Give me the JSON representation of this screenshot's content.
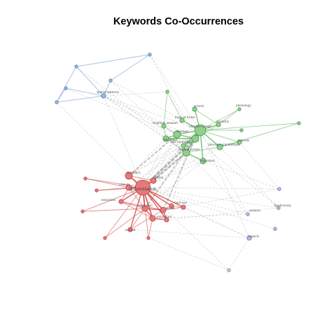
{
  "title": "Keywords Co-Occurrences",
  "colors": {
    "red": "#d9534f",
    "green": "#5cb85c",
    "blue": "#5b9bd5",
    "purple": "#b39ddb",
    "grey": "#999999"
  },
  "clusters": {
    "red": {
      "fill": "#e8787a",
      "stroke": "#b23b3d",
      "edge": "#d64545"
    },
    "green": {
      "fill": "#8fd18a",
      "stroke": "#3d8b3d",
      "edge": "#62b562"
    },
    "blue": {
      "fill": "#9fb8e0",
      "stroke": "#4a6fb0",
      "edge": "#6a98d0"
    },
    "purple": {
      "fill": "#cdb6e4",
      "stroke": "#7b5a9c",
      "edge": "#b89ad4"
    },
    "grey": {
      "fill": "#cfcfcf",
      "stroke": "#7a7a7a",
      "edge": "#bdbdbd"
    }
  },
  "nodes": [
    {
      "id": "deforestation",
      "label": "deforestation",
      "cluster": "red",
      "weight": 10
    },
    {
      "id": "dynamics",
      "label": "dynamics",
      "cluster": "red",
      "weight": 4
    },
    {
      "id": "carbon",
      "label": "carbon",
      "cluster": "red",
      "weight": 3
    },
    {
      "id": "climate",
      "label": "climate",
      "cluster": "red",
      "weight": 3
    },
    {
      "id": "emissions",
      "label": "emissions",
      "cluster": "red",
      "weight": 2
    },
    {
      "id": "vegetation",
      "label": "vegetation",
      "cluster": "red",
      "weight": 3
    },
    {
      "id": "model",
      "label": "model",
      "cluster": "red",
      "weight": 3
    },
    {
      "id": "land-use",
      "label": "land-use",
      "cluster": "red",
      "weight": 2
    },
    {
      "id": "simulation",
      "label": "simulation",
      "cluster": "red",
      "weight": 2
    },
    {
      "id": "rainfall",
      "label": "rainfall",
      "cluster": "red",
      "weight": 2
    },
    {
      "id": "cover",
      "label": "",
      "cluster": "red",
      "weight": 3
    },
    {
      "id": "r1",
      "label": "",
      "cluster": "red",
      "weight": 1
    },
    {
      "id": "r2",
      "label": "",
      "cluster": "red",
      "weight": 1
    },
    {
      "id": "r3",
      "label": "",
      "cluster": "red",
      "weight": 1
    },
    {
      "id": "r4",
      "label": "",
      "cluster": "red",
      "weight": 1
    },
    {
      "id": "r5",
      "label": "",
      "cluster": "red",
      "weight": 2
    },
    {
      "id": "r6",
      "label": "",
      "cluster": "red",
      "weight": 1
    },
    {
      "id": "climate-change",
      "label": "climate-change",
      "cluster": "green",
      "weight": 7
    },
    {
      "id": "tropical-forest",
      "label": "tropical forest",
      "cluster": "green",
      "weight": 2
    },
    {
      "id": "growth",
      "label": "growth",
      "cluster": "green",
      "weight": 2
    },
    {
      "id": "phenology",
      "label": "phenology",
      "cluster": "green",
      "weight": 1
    },
    {
      "id": "mortality",
      "label": "mortality",
      "cluster": "green",
      "weight": 2
    },
    {
      "id": "brazilian-amazon",
      "label": "brazilian amazon",
      "cluster": "green",
      "weight": 2
    },
    {
      "id": "biomass",
      "label": "biomass",
      "cluster": "green",
      "weight": 4
    },
    {
      "id": "amazonia",
      "label": "amazonia",
      "cluster": "green",
      "weight": 3
    },
    {
      "id": "tree-mortality",
      "label": "tree mortality",
      "cluster": "green",
      "weight": 2
    },
    {
      "id": "tropical-forests",
      "label": "tropical forests",
      "cluster": "green",
      "weight": 4
    },
    {
      "id": "aboveground-biomass",
      "label": "aboveground biomass",
      "cluster": "green",
      "weight": 3
    },
    {
      "id": "patterns",
      "label": "patterns",
      "cluster": "green",
      "weight": 2
    },
    {
      "id": "vegetation2",
      "label": "vegetation",
      "cluster": "green",
      "weight": 3
    },
    {
      "id": "drought",
      "label": "",
      "cluster": "green",
      "weight": 4
    },
    {
      "id": "g1",
      "label": "",
      "cluster": "green",
      "weight": 1
    },
    {
      "id": "g2",
      "label": "",
      "cluster": "green",
      "weight": 1
    },
    {
      "id": "g3",
      "label": "",
      "cluster": "green",
      "weight": 1
    },
    {
      "id": "spatial-patterns",
      "label": "spatial-patterns",
      "cluster": "blue",
      "weight": 2
    },
    {
      "id": "b1",
      "label": "",
      "cluster": "blue",
      "weight": 1
    },
    {
      "id": "b2",
      "label": "",
      "cluster": "blue",
      "weight": 1
    },
    {
      "id": "b3",
      "label": "",
      "cluster": "blue",
      "weight": 1
    },
    {
      "id": "b4",
      "label": "",
      "cluster": "blue",
      "weight": 1
    },
    {
      "id": "b5",
      "label": "",
      "cluster": "blue",
      "weight": 1
    },
    {
      "id": "amazon",
      "label": "amazon",
      "cluster": "purple",
      "weight": 1
    },
    {
      "id": "biodiversity",
      "label": "biodiversity",
      "cluster": "purple",
      "weight": 1
    },
    {
      "id": "impacts",
      "label": "impacts",
      "cluster": "purple",
      "weight": 2
    },
    {
      "id": "p1",
      "label": "",
      "cluster": "purple",
      "weight": 1
    },
    {
      "id": "p2",
      "label": "",
      "cluster": "purple",
      "weight": 1
    },
    {
      "id": "x1",
      "label": "",
      "cluster": "grey",
      "weight": 1
    }
  ]
}
